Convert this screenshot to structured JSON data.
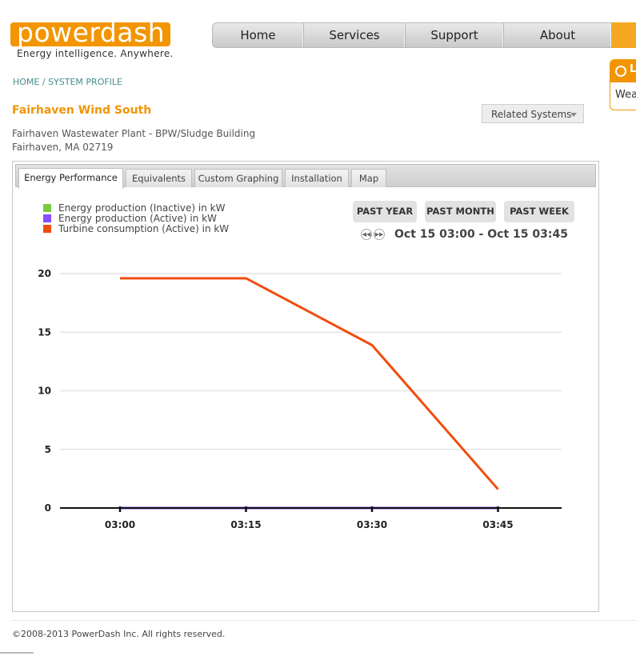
{
  "brand": {
    "logo_text": "powerdash",
    "tagline": "Energy intelligence. Anywhere.",
    "accent_color": "#f29500"
  },
  "nav": {
    "items": [
      {
        "label": "Home"
      },
      {
        "label": "Services"
      },
      {
        "label": "Support"
      },
      {
        "label": "About"
      }
    ]
  },
  "side_widget": {
    "letter": "L",
    "text": "Weat"
  },
  "breadcrumb": {
    "home": "HOME",
    "separator": " / ",
    "current": "SYSTEM PROFILE"
  },
  "system": {
    "title": "Fairhaven Wind South",
    "address_line1": "Fairhaven Wastewater Plant - BPW/Sludge Building",
    "address_line2": "Fairhaven, MA 02719",
    "related_label": "Related Systems"
  },
  "tabs": [
    {
      "label": "Energy Performance",
      "active": true
    },
    {
      "label": "Equivalents",
      "active": false
    },
    {
      "label": "Custom Graphing",
      "active": false
    },
    {
      "label": "Installation",
      "active": false
    },
    {
      "label": "Map",
      "active": false
    }
  ],
  "range_buttons": {
    "past_year": "PAST YEAR",
    "past_month": "PAST MONTH",
    "past_week": "PAST WEEK"
  },
  "date_range": "Oct 15 03:00 - Oct 15 03:45",
  "chart_data": {
    "type": "line",
    "x": [
      "03:00",
      "03:15",
      "03:30",
      "03:45"
    ],
    "ylim": [
      0,
      20
    ],
    "yticks": [
      0,
      5,
      10,
      15,
      20
    ],
    "grid": true,
    "legend_position": "top-left",
    "series": [
      {
        "name": "Energy production (Inactive) in kW",
        "color": "#7ac943",
        "values": [
          0,
          0,
          0,
          0
        ]
      },
      {
        "name": "Energy production (Active) in kW",
        "color": "#8a4dff",
        "values": [
          0,
          0,
          0,
          0
        ]
      },
      {
        "name": "Turbine consumption (Active) in kW",
        "color": "#f04e0f",
        "values": [
          19.6,
          19.6,
          13.9,
          1.6
        ]
      }
    ]
  },
  "footer": {
    "text": "©2008-2013 PowerDash Inc. All rights reserved."
  }
}
